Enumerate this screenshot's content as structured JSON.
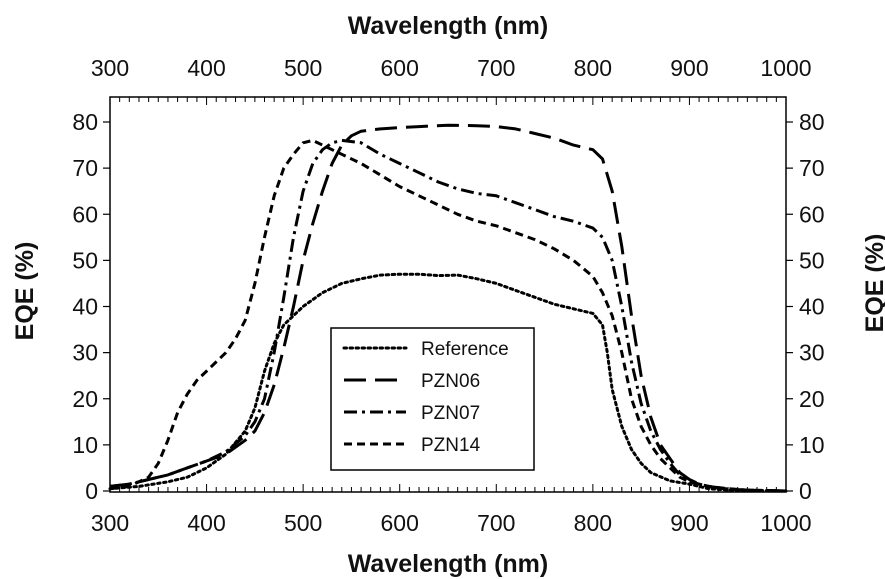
{
  "chart_data": {
    "type": "line",
    "xlabel": "Wavelength (nm)",
    "xlabel_top": "Wavelength (nm)",
    "ylabel": "EQE (%)",
    "ylabel_right": "EQE (%)",
    "xlim": [
      300,
      1000
    ],
    "ylim": [
      0,
      85
    ],
    "xticks": [
      300,
      400,
      500,
      600,
      700,
      800,
      900,
      1000
    ],
    "yticks": [
      0,
      10,
      20,
      30,
      40,
      50,
      60,
      70,
      80
    ],
    "grid": false,
    "legend_position": "center",
    "series": [
      {
        "name": "Reference",
        "style": "dotted",
        "color": "#000000",
        "points": [
          [
            300,
            0.5
          ],
          [
            330,
            1
          ],
          [
            360,
            2
          ],
          [
            380,
            3
          ],
          [
            400,
            5
          ],
          [
            420,
            8
          ],
          [
            440,
            13
          ],
          [
            450,
            18
          ],
          [
            460,
            26
          ],
          [
            470,
            32
          ],
          [
            480,
            36
          ],
          [
            490,
            38
          ],
          [
            500,
            40
          ],
          [
            520,
            43
          ],
          [
            540,
            45
          ],
          [
            560,
            46
          ],
          [
            580,
            46.8
          ],
          [
            600,
            47
          ],
          [
            620,
            47
          ],
          [
            640,
            46.7
          ],
          [
            660,
            46.8
          ],
          [
            680,
            46
          ],
          [
            700,
            45
          ],
          [
            720,
            43.5
          ],
          [
            740,
            42
          ],
          [
            760,
            40.5
          ],
          [
            780,
            39.5
          ],
          [
            800,
            38.5
          ],
          [
            810,
            36
          ],
          [
            815,
            30
          ],
          [
            820,
            22
          ],
          [
            830,
            14
          ],
          [
            840,
            9
          ],
          [
            850,
            6
          ],
          [
            860,
            4
          ],
          [
            880,
            2.2
          ],
          [
            900,
            1.5
          ],
          [
            920,
            0.5
          ],
          [
            940,
            0.2
          ],
          [
            960,
            0.1
          ],
          [
            1000,
            0
          ]
        ]
      },
      {
        "name": "PZN06",
        "style": "long-dash",
        "color": "#000000",
        "points": [
          [
            300,
            1
          ],
          [
            320,
            1.5
          ],
          [
            340,
            2.5
          ],
          [
            360,
            3.5
          ],
          [
            380,
            5
          ],
          [
            400,
            6.5
          ],
          [
            420,
            8
          ],
          [
            440,
            11
          ],
          [
            450,
            13
          ],
          [
            460,
            17
          ],
          [
            470,
            23
          ],
          [
            480,
            31
          ],
          [
            490,
            40
          ],
          [
            500,
            50
          ],
          [
            510,
            58
          ],
          [
            520,
            65
          ],
          [
            530,
            71
          ],
          [
            540,
            75
          ],
          [
            550,
            77
          ],
          [
            560,
            78
          ],
          [
            580,
            78.5
          ],
          [
            600,
            78.8
          ],
          [
            620,
            79
          ],
          [
            650,
            79.3
          ],
          [
            680,
            79.2
          ],
          [
            700,
            79
          ],
          [
            720,
            78.5
          ],
          [
            740,
            77.5
          ],
          [
            760,
            76.5
          ],
          [
            780,
            75
          ],
          [
            800,
            74
          ],
          [
            810,
            72
          ],
          [
            820,
            65
          ],
          [
            830,
            53
          ],
          [
            840,
            38
          ],
          [
            850,
            25
          ],
          [
            860,
            16
          ],
          [
            870,
            10
          ],
          [
            880,
            7
          ],
          [
            890,
            4
          ],
          [
            900,
            2.5
          ],
          [
            910,
            1.5
          ],
          [
            920,
            1
          ],
          [
            940,
            0.4
          ],
          [
            960,
            0.2
          ],
          [
            1000,
            0
          ]
        ]
      },
      {
        "name": "PZN07",
        "style": "dash-dot",
        "color": "#000000",
        "points": [
          [
            300,
            1
          ],
          [
            320,
            1.5
          ],
          [
            340,
            2.5
          ],
          [
            360,
            3.5
          ],
          [
            380,
            5
          ],
          [
            400,
            6.5
          ],
          [
            420,
            8.5
          ],
          [
            440,
            12
          ],
          [
            450,
            15
          ],
          [
            460,
            20
          ],
          [
            470,
            30
          ],
          [
            480,
            42
          ],
          [
            490,
            55
          ],
          [
            500,
            65
          ],
          [
            510,
            71
          ],
          [
            520,
            74
          ],
          [
            530,
            75.5
          ],
          [
            540,
            76
          ],
          [
            560,
            75.5
          ],
          [
            580,
            73
          ],
          [
            600,
            71
          ],
          [
            620,
            69
          ],
          [
            640,
            67
          ],
          [
            660,
            65.5
          ],
          [
            680,
            64.5
          ],
          [
            700,
            64
          ],
          [
            720,
            62.5
          ],
          [
            740,
            61
          ],
          [
            760,
            59.5
          ],
          [
            780,
            58.5
          ],
          [
            800,
            57
          ],
          [
            810,
            55
          ],
          [
            820,
            50
          ],
          [
            830,
            40
          ],
          [
            840,
            28
          ],
          [
            850,
            19
          ],
          [
            860,
            13
          ],
          [
            870,
            9
          ],
          [
            880,
            6
          ],
          [
            890,
            3.5
          ],
          [
            900,
            2
          ],
          [
            920,
            1
          ],
          [
            940,
            0.4
          ],
          [
            960,
            0.2
          ],
          [
            1000,
            0
          ]
        ]
      },
      {
        "name": "PZN14",
        "style": "short-dash",
        "color": "#000000",
        "points": [
          [
            300,
            0.5
          ],
          [
            320,
            1
          ],
          [
            340,
            3
          ],
          [
            350,
            6
          ],
          [
            360,
            11
          ],
          [
            370,
            17
          ],
          [
            380,
            21
          ],
          [
            390,
            24
          ],
          [
            400,
            26
          ],
          [
            420,
            30
          ],
          [
            430,
            33
          ],
          [
            440,
            37
          ],
          [
            450,
            45
          ],
          [
            460,
            55
          ],
          [
            470,
            64
          ],
          [
            480,
            70
          ],
          [
            490,
            73
          ],
          [
            500,
            75.5
          ],
          [
            510,
            76
          ],
          [
            520,
            75
          ],
          [
            530,
            74
          ],
          [
            540,
            73
          ],
          [
            560,
            71
          ],
          [
            580,
            68.5
          ],
          [
            600,
            66
          ],
          [
            620,
            64
          ],
          [
            640,
            62
          ],
          [
            660,
            60
          ],
          [
            680,
            58.5
          ],
          [
            700,
            57.5
          ],
          [
            720,
            56
          ],
          [
            740,
            54.5
          ],
          [
            760,
            52.5
          ],
          [
            780,
            50
          ],
          [
            800,
            46.5
          ],
          [
            810,
            43
          ],
          [
            820,
            38
          ],
          [
            830,
            30
          ],
          [
            840,
            20
          ],
          [
            850,
            14
          ],
          [
            860,
            10
          ],
          [
            870,
            7
          ],
          [
            880,
            5
          ],
          [
            890,
            3
          ],
          [
            900,
            2
          ],
          [
            920,
            1
          ],
          [
            940,
            0.5
          ],
          [
            960,
            0.2
          ],
          [
            1000,
            0
          ]
        ]
      }
    ]
  }
}
